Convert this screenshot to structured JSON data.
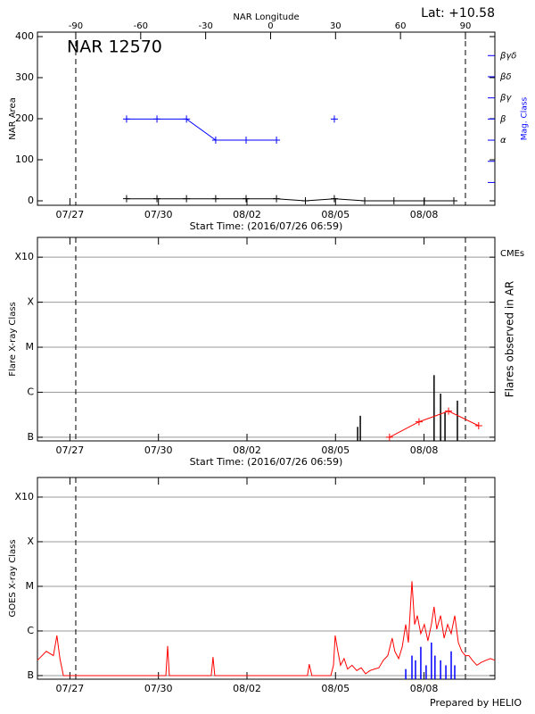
{
  "lat_label": "Lat: +10.58",
  "footer": "Prepared by HELIO",
  "chart_data": [
    {
      "type": "line",
      "title": "NAR 12570",
      "xlabel": "Start Time: (2016/07/26 06:59)",
      "ylabel": "NAR Area",
      "y2label": "Mag. Class",
      "x2label": "NAR Longitude",
      "xlim": [
        0,
        15.5
      ],
      "xticks": [
        {
          "value": 1.1,
          "label": "07/27"
        },
        {
          "value": 4.1,
          "label": "07/30"
        },
        {
          "value": 7.1,
          "label": "08/02"
        },
        {
          "value": 10.1,
          "label": "08/05"
        },
        {
          "value": 13.1,
          "label": "08/08"
        }
      ],
      "ylim": [
        -10.9,
        410.9
      ],
      "yticks": [
        0,
        100,
        200,
        300,
        400
      ],
      "y2lim": [
        -2.08,
        6.11
      ],
      "y2ticks": [
        {
          "value": -1,
          "label": null
        },
        {
          "value": 0,
          "label": null
        },
        {
          "value": 1,
          "label": "α"
        },
        {
          "value": 2,
          "label": "β"
        },
        {
          "value": 3,
          "label": "βγ"
        },
        {
          "value": 4,
          "label": "βδ"
        },
        {
          "value": 5,
          "label": "βγδ"
        }
      ],
      "y2color": "#0000ff",
      "x2lim": [
        -107.7,
        103.6
      ],
      "x2ticks": [
        -90,
        -60,
        -30,
        0,
        30,
        60,
        90
      ],
      "series": [
        {
          "type": "line",
          "marker": "+",
          "color": "#000000",
          "x": [
            3.02,
            4.05,
            5.05,
            6.04,
            7.07,
            8.1,
            9.08,
            10.06,
            11.09,
            12.08,
            13.11,
            14.11
          ],
          "values": [
            5,
            5,
            5,
            5,
            5,
            5,
            0,
            5,
            0,
            0,
            0,
            0
          ]
        },
        {
          "type": "line",
          "marker": "+",
          "color": "#0000ff",
          "axis": "y2",
          "x": [
            3.02,
            4.05,
            5.05,
            6.04,
            7.07,
            8.1,
            9.08,
            10.06
          ],
          "values": [
            2,
            2,
            2,
            1,
            1,
            1,
            null,
            2
          ]
        }
      ]
    },
    {
      "type": "combo",
      "xlabel": "Start Time: (2016/07/26 06:59)",
      "ylabel": "Flare X-ray Class",
      "y2label": "Flares observed in AR",
      "xlim": [
        0,
        15.5
      ],
      "xticks": [
        {
          "value": 1.1,
          "label": "07/27"
        },
        {
          "value": 4.1,
          "label": "07/30"
        },
        {
          "value": 7.1,
          "label": "08/02"
        },
        {
          "value": 10.1,
          "label": "08/05"
        },
        {
          "value": 13.1,
          "label": "08/08"
        }
      ],
      "log_y": true,
      "grid": true,
      "ylim": [
        8.3e-08,
        0.00275
      ],
      "yticks": [
        {
          "value": 1e-07,
          "label": "B"
        },
        {
          "value": 1e-06,
          "label": "C"
        },
        {
          "value": 1e-05,
          "label": "M"
        },
        {
          "value": 0.0001,
          "label": "X"
        },
        {
          "value": 0.001,
          "label": "X10"
        }
      ],
      "series": [
        {
          "type": "stem",
          "color": "#000000",
          "x": [
            10.85,
            10.94,
            13.44,
            13.66,
            13.81,
            14.23
          ],
          "values": [
            1.7e-07,
            3e-07,
            2.4e-06,
            9.3e-07,
            3.6e-07,
            6.5e-07
          ]
        },
        {
          "type": "line",
          "marker": "+",
          "name": "CMEs",
          "color": "#ff0000",
          "x": [
            11.93,
            12.93,
            13.93,
            14.95
          ],
          "values": [
            1e-07,
            2.2e-07,
            3.8e-07,
            1.8e-07
          ]
        }
      ]
    },
    {
      "type": "combo",
      "ylabel": "GOES X-ray Class",
      "xlim": [
        0,
        15.5
      ],
      "xticks": [
        {
          "value": 1.1,
          "label": "07/27"
        },
        {
          "value": 4.1,
          "label": "07/30"
        },
        {
          "value": 7.1,
          "label": "08/02"
        },
        {
          "value": 10.1,
          "label": "08/05"
        },
        {
          "value": 13.1,
          "label": "08/08"
        }
      ],
      "log_y": true,
      "grid": true,
      "ylim": [
        8.3e-08,
        0.00275
      ],
      "yticks": [
        {
          "value": 1e-07,
          "label": "B"
        },
        {
          "value": 1e-06,
          "label": "C"
        },
        {
          "value": 1e-05,
          "label": "M"
        },
        {
          "value": 0.0001,
          "label": "X"
        },
        {
          "value": 0.001,
          "label": "X10"
        }
      ],
      "series": [
        {
          "type": "line",
          "color": "#ff0000",
          "x": [
            0,
            0.3,
            0.54,
            0.66,
            0.76,
            0.88,
            4.35,
            4.41,
            4.47,
            5.89,
            5.95,
            6.01,
            9.15,
            9.21,
            9.3,
            9.94,
            10.03,
            10.09,
            10.18,
            10.27,
            10.39,
            10.51,
            10.66,
            10.82,
            10.97,
            11.12,
            11.27,
            11.42,
            11.57,
            11.72,
            11.87,
            12.02,
            12.11,
            12.24,
            12.36,
            12.48,
            12.57,
            12.69,
            12.78,
            12.87,
            12.99,
            13.11,
            13.23,
            13.35,
            13.44,
            13.53,
            13.66,
            13.78,
            13.9,
            14.02,
            14.14,
            14.26,
            14.38,
            14.5,
            14.62,
            14.74,
            14.89,
            15.05,
            15.2,
            15.35,
            15.5
          ],
          "values": [
            2.2e-07,
            3.5e-07,
            2.8e-07,
            7.9e-07,
            2.4e-07,
            1e-07,
            1e-07,
            4.6e-07,
            1e-07,
            1e-07,
            2.6e-07,
            1e-07,
            1e-07,
            1.8e-07,
            1e-07,
            1e-07,
            1.7e-07,
            7.9e-07,
            3.5e-07,
            1.7e-07,
            2.4e-07,
            1.4e-07,
            1.7e-07,
            1.3e-07,
            1.5e-07,
            1.1e-07,
            1.3e-07,
            1.4e-07,
            1.5e-07,
            2.2e-07,
            2.8e-07,
            6.9e-07,
            3.5e-07,
            2.4e-07,
            4.4e-07,
            1.4e-06,
            5.5e-07,
            1.3e-05,
            1.4e-06,
            2.2e-06,
            8.7e-07,
            1.4e-06,
            6e-07,
            1.4e-06,
            3.5e-06,
            1.1e-06,
            2.2e-06,
            6.9e-07,
            1.4e-06,
            8.7e-07,
            2.2e-06,
            5.5e-07,
            3.5e-07,
            2.8e-07,
            2.8e-07,
            2.2e-07,
            1.7e-07,
            2e-07,
            2.2e-07,
            2.4e-07,
            2.2e-07
          ]
        },
        {
          "type": "stem",
          "color": "#0000ff",
          "x": [
            12.48,
            12.69,
            12.81,
            12.99,
            13.17,
            13.35,
            13.47,
            13.66,
            13.84,
            14.02,
            14.14
          ],
          "values": [
            1.4e-07,
            2.8e-07,
            2.2e-07,
            4.4e-07,
            1.7e-07,
            5.5e-07,
            2.8e-07,
            2.2e-07,
            1.7e-07,
            3.5e-07,
            1.7e-07
          ]
        }
      ]
    }
  ]
}
